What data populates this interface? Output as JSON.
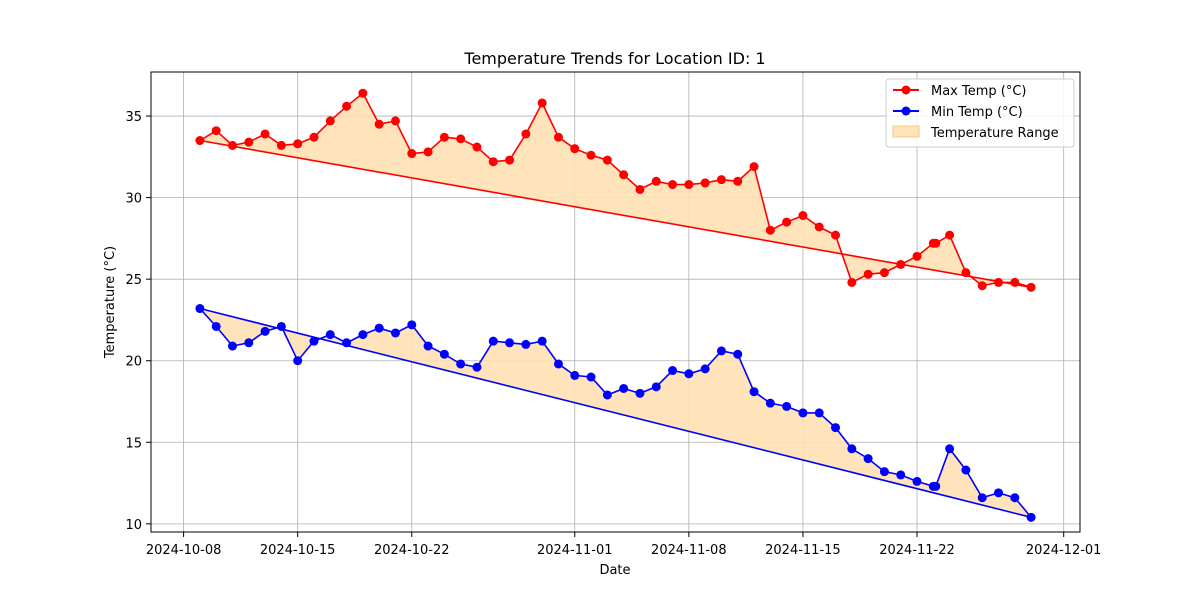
{
  "chart_data": {
    "type": "line",
    "title": "Temperature Trends for Location ID: 1",
    "xlabel": "Date",
    "ylabel": "Temperature (°C)",
    "x_range": [
      "2024-10-06",
      "2024-12-02"
    ],
    "ylim": [
      9.5,
      37.7
    ],
    "x_ticks": [
      "2024-10-08",
      "2024-10-15",
      "2024-10-22",
      "2024-11-01",
      "2024-11-08",
      "2024-11-15",
      "2024-11-22",
      "2024-12-01"
    ],
    "y_ticks": [
      10,
      15,
      20,
      25,
      30,
      35
    ],
    "grid": true,
    "legend_position": "top-right",
    "dates": [
      "2024-10-09",
      "2024-10-10",
      "2024-10-11",
      "2024-10-12",
      "2024-10-13",
      "2024-10-14",
      "2024-10-15",
      "2024-10-16",
      "2024-10-17",
      "2024-10-18",
      "2024-10-19",
      "2024-10-20",
      "2024-10-21",
      "2024-10-22",
      "2024-10-23",
      "2024-10-24",
      "2024-10-25",
      "2024-10-26",
      "2024-10-27",
      "2024-10-28",
      "2024-10-29",
      "2024-10-30",
      "2024-10-31",
      "2024-11-01",
      "2024-11-02",
      "2024-11-03",
      "2024-11-04",
      "2024-11-05",
      "2024-11-06",
      "2024-11-07",
      "2024-11-08",
      "2024-11-09",
      "2024-11-10",
      "2024-11-11",
      "2024-11-12",
      "2024-11-13",
      "2024-11-14",
      "2024-11-15",
      "2024-11-16",
      "2024-11-17",
      "2024-11-18",
      "2024-11-19",
      "2024-11-20",
      "2024-11-21",
      "2024-11-22",
      "2024-11-23",
      "2024-11-23",
      "2024-11-24",
      "2024-11-25",
      "2024-11-26",
      "2024-11-27",
      "2024-11-28",
      "2024-11-29"
    ],
    "series": [
      {
        "name": "Max Temp (°C)",
        "color": "#ff0000",
        "values": [
          33.5,
          34.1,
          33.2,
          33.4,
          33.9,
          33.2,
          33.3,
          33.7,
          34.7,
          35.6,
          36.4,
          34.5,
          34.7,
          32.7,
          32.8,
          33.7,
          33.6,
          33.1,
          32.2,
          32.3,
          33.9,
          35.8,
          33.7,
          33.0,
          32.6,
          32.3,
          31.4,
          30.5,
          31.0,
          30.8,
          30.8,
          30.9,
          31.1,
          31.0,
          31.9,
          28.0,
          28.5,
          28.9,
          28.2,
          27.7,
          24.8,
          25.3,
          25.4,
          25.9,
          26.4,
          27.2,
          27.2,
          27.7,
          25.4,
          24.6,
          24.8,
          24.8,
          24.5
        ]
      },
      {
        "name": "Min Temp (°C)",
        "color": "#0000ff",
        "values": [
          23.2,
          22.1,
          20.9,
          21.1,
          21.8,
          22.1,
          20.0,
          21.2,
          21.6,
          21.1,
          21.6,
          22.0,
          21.7,
          22.2,
          20.9,
          20.4,
          19.8,
          19.6,
          21.2,
          21.1,
          21.0,
          21.2,
          19.8,
          19.1,
          19.0,
          17.9,
          18.3,
          18.0,
          18.4,
          19.4,
          19.2,
          19.5,
          20.6,
          20.4,
          18.1,
          17.4,
          17.2,
          16.8,
          16.8,
          15.9,
          14.6,
          14.0,
          13.2,
          13.0,
          12.6,
          12.3,
          12.3,
          14.6,
          13.3,
          11.6,
          11.9,
          11.6,
          10.4
        ]
      },
      {
        "name": "Temperature Range",
        "color": "#ffe0b2",
        "type": "area"
      }
    ]
  }
}
